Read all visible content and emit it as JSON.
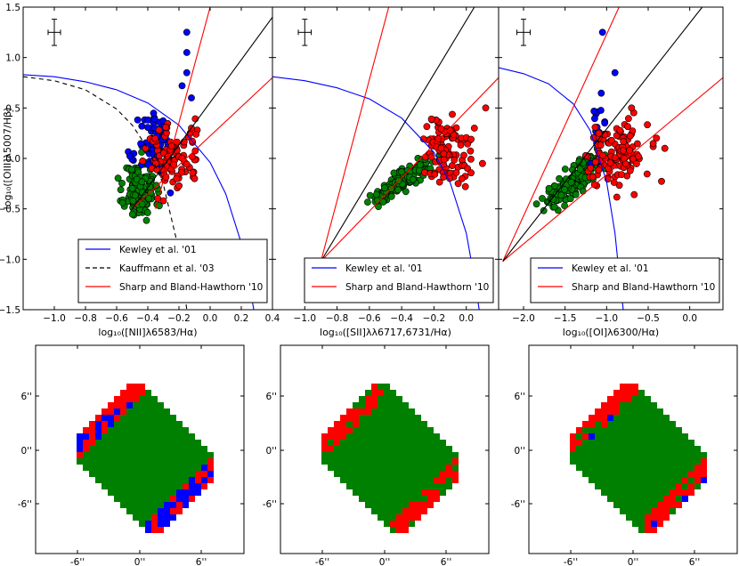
{
  "chart_data": [
    {
      "type": "scatter",
      "id": "bpt-nii",
      "xlabel": "log₁₀([NII]λ6583/Hα)",
      "ylabel": "log₁₀([OIII]λ5007/Hβ)",
      "xlim": [
        -1.2,
        0.4
      ],
      "ylim": [
        -1.5,
        1.5
      ],
      "xticks": [
        -1.0,
        -0.8,
        -0.6,
        -0.4,
        -0.2,
        0.0,
        0.2,
        0.4
      ],
      "xtick_labels": [
        "−1.0",
        "−0.8",
        "−0.6",
        "−0.4",
        "−0.2",
        "0.0",
        "0.2",
        "0.4"
      ],
      "yticks": [
        -1.5,
        -1.0,
        -0.5,
        0.0,
        0.5,
        1.0,
        1.5
      ],
      "ytick_labels": [
        "−1.5",
        "−1.0",
        "−0.5",
        "0.0",
        "0.5",
        "1.0",
        "1.5"
      ],
      "legend": {
        "position": "lower-center",
        "entries": [
          {
            "label": "Kewley et al. '01",
            "color": "#0000ff",
            "style": "solid"
          },
          {
            "label": "Kauffmann et al. '03",
            "color": "#000000",
            "style": "dashed"
          },
          {
            "label": "Sharp and Bland-Hawthorn '10",
            "color": "#ff0000",
            "style": "solid"
          }
        ]
      },
      "lines": [
        {
          "name": "kewley",
          "color": "#0000ff",
          "x": [
            -1.2,
            -1.0,
            -0.8,
            -0.6,
            -0.4,
            -0.2,
            0.0,
            0.1,
            0.2,
            0.25,
            0.28
          ],
          "y": [
            0.83,
            0.81,
            0.76,
            0.68,
            0.55,
            0.33,
            -0.04,
            -0.35,
            -0.84,
            -1.22,
            -1.5
          ]
        },
        {
          "name": "kauffmann",
          "color": "#000000",
          "dashed": true,
          "x": [
            -1.2,
            -1.0,
            -0.8,
            -0.6,
            -0.5,
            -0.4,
            -0.3,
            -0.2,
            -0.15
          ],
          "y": [
            0.81,
            0.77,
            0.68,
            0.49,
            0.33,
            0.1,
            -0.26,
            -0.91,
            -1.5
          ]
        },
        {
          "name": "sbh-upper",
          "color": "#ff0000",
          "x": [
            -0.35,
            0.0
          ],
          "y": [
            -0.5,
            1.5
          ]
        },
        {
          "name": "sbh-lower",
          "color": "#ff0000",
          "x": [
            -0.5,
            0.4
          ],
          "y": [
            -0.5,
            0.8
          ]
        },
        {
          "name": "divider",
          "color": "#000000",
          "x": [
            -0.5,
            0.4
          ],
          "y": [
            -0.5,
            1.4
          ]
        }
      ],
      "errorbar": {
        "x": -1.0,
        "y": 1.25,
        "xerr": 0.04,
        "yerr": 0.13
      },
      "series": [
        {
          "name": "green",
          "color": "#008000",
          "cx": -0.45,
          "cy": -0.32,
          "sx": 0.05,
          "sy": 0.14,
          "n": 150,
          "seed": 11
        },
        {
          "name": "blue",
          "color": "#0000ff",
          "cx": -0.34,
          "cy": 0.12,
          "sx": 0.06,
          "sy": 0.15,
          "n": 80,
          "seed": 21,
          "extra": [
            [
              -0.15,
              1.25
            ],
            [
              -0.15,
              1.05
            ],
            [
              -0.12,
              0.6
            ],
            [
              -0.15,
              0.85
            ],
            [
              -0.18,
              0.72
            ]
          ]
        },
        {
          "name": "red",
          "color": "#ff0000",
          "cx": -0.24,
          "cy": 0.0,
          "sx": 0.09,
          "sy": 0.16,
          "n": 90,
          "seed": 31,
          "extra": [
            [
              -0.12,
              0.3
            ],
            [
              -0.3,
              -0.42
            ],
            [
              -0.1,
              -0.2
            ]
          ]
        }
      ]
    },
    {
      "type": "scatter",
      "id": "bpt-sii",
      "xlabel": "log₁₀([SII]λλ6717,6731/Hα)",
      "ylabel": "",
      "xlim": [
        -1.2,
        0.2
      ],
      "ylim": [
        -1.5,
        1.5
      ],
      "xticks": [
        -1.0,
        -0.8,
        -0.6,
        -0.4,
        -0.2,
        0.0
      ],
      "xtick_labels": [
        "−1.0",
        "−0.8",
        "−0.6",
        "−0.4",
        "−0.2",
        "0.0"
      ],
      "legend": {
        "position": "lower-right",
        "entries": [
          {
            "label": "Kewley et al. '01",
            "color": "#0000ff",
            "style": "solid"
          },
          {
            "label": "Sharp and Bland-Hawthorn '10",
            "color": "#ff0000",
            "style": "solid"
          }
        ]
      },
      "lines": [
        {
          "name": "kewley",
          "color": "#0000ff",
          "x": [
            -1.2,
            -1.0,
            -0.8,
            -0.6,
            -0.4,
            -0.2,
            -0.1,
            0.0,
            0.05,
            0.08
          ],
          "y": [
            0.81,
            0.77,
            0.7,
            0.59,
            0.4,
            0.06,
            -0.24,
            -0.74,
            -1.19,
            -1.5
          ]
        },
        {
          "name": "sbh-upper",
          "color": "#ff0000",
          "x": [
            -0.9,
            -0.48
          ],
          "y": [
            -1.02,
            1.5
          ]
        },
        {
          "name": "sbh-lower",
          "color": "#ff0000",
          "x": [
            -0.9,
            0.2
          ],
          "y": [
            -1.02,
            0.8
          ]
        },
        {
          "name": "divider",
          "color": "#000000",
          "x": [
            -0.9,
            0.05
          ],
          "y": [
            -1.02,
            1.5
          ]
        }
      ],
      "errorbar": {
        "x": -1.0,
        "y": 1.25,
        "xerr": 0.04,
        "yerr": 0.13
      },
      "series": [
        {
          "name": "green",
          "color": "#008000",
          "cx": -0.4,
          "cy": -0.22,
          "sx": 0.09,
          "sy": 0.11,
          "n": 190,
          "seed": 41,
          "corr": 0.9
        },
        {
          "name": "red",
          "color": "#ff0000",
          "cx": -0.13,
          "cy": 0.07,
          "sx": 0.08,
          "sy": 0.17,
          "n": 110,
          "seed": 51,
          "extra": [
            [
              0.12,
              0.5
            ],
            [
              0.05,
              0.3
            ],
            [
              0.1,
              -0.05
            ],
            [
              -0.05,
              -0.25
            ]
          ]
        }
      ]
    },
    {
      "type": "scatter",
      "id": "bpt-oi",
      "xlabel": "log₁₀([OI]λ6300/Hα)",
      "ylabel": "",
      "xlim": [
        -2.3,
        0.4
      ],
      "ylim": [
        -1.5,
        1.5
      ],
      "xticks": [
        -2.0,
        -1.5,
        -1.0,
        -0.5,
        0.0
      ],
      "xtick_labels": [
        "−2.0",
        "−1.5",
        "−1.0",
        "−0.5",
        "0.0"
      ],
      "legend": {
        "position": "lower-right",
        "entries": [
          {
            "label": "Kewley et al. '01",
            "color": "#0000ff",
            "style": "solid"
          },
          {
            "label": "Sharp and Bland-Hawthorn '10",
            "color": "#ff0000",
            "style": "solid"
          }
        ]
      },
      "lines": [
        {
          "name": "kewley",
          "color": "#0000ff",
          "x": [
            -2.3,
            -2.0,
            -1.7,
            -1.4,
            -1.2,
            -1.0,
            -0.9,
            -0.85,
            -0.8
          ],
          "y": [
            0.9,
            0.84,
            0.74,
            0.54,
            0.28,
            -0.23,
            -0.74,
            -1.14,
            -1.5
          ]
        },
        {
          "name": "sbh-upper",
          "color": "#ff0000",
          "x": [
            -2.25,
            -0.85
          ],
          "y": [
            -1.02,
            1.5
          ]
        },
        {
          "name": "sbh-lower",
          "color": "#ff0000",
          "x": [
            -2.25,
            0.4
          ],
          "y": [
            -1.02,
            0.8
          ]
        },
        {
          "name": "divider",
          "color": "#000000",
          "x": [
            -2.25,
            0.15
          ],
          "y": [
            -1.02,
            1.5
          ]
        }
      ],
      "errorbar": {
        "x": -2.0,
        "y": 1.25,
        "xerr": 0.08,
        "yerr": 0.13
      },
      "series": [
        {
          "name": "green",
          "color": "#008000",
          "cx": -1.4,
          "cy": -0.22,
          "sx": 0.17,
          "sy": 0.14,
          "n": 190,
          "seed": 61,
          "corr": 0.85
        },
        {
          "name": "blue",
          "color": "#0000ff",
          "cx": -1.08,
          "cy": 0.28,
          "sx": 0.05,
          "sy": 0.16,
          "n": 20,
          "seed": 71,
          "extra": [
            [
              -1.05,
              1.25
            ],
            [
              -0.9,
              0.85
            ]
          ]
        },
        {
          "name": "red",
          "color": "#ff0000",
          "cx": -0.88,
          "cy": 0.05,
          "sx": 0.17,
          "sy": 0.17,
          "n": 120,
          "seed": 81,
          "extra": [
            [
              -0.3,
              0.1
            ],
            [
              -0.4,
              0.2
            ],
            [
              -0.7,
              0.5
            ]
          ]
        }
      ]
    }
  ],
  "maps": {
    "x_tick_labels": [
      "-6''",
      "0''",
      "6''"
    ],
    "y_tick_labels": [
      "6''",
      "0''",
      "-6''"
    ],
    "panels": [
      {
        "id": "map-nii",
        "blue_patches": true,
        "red_rim": "full"
      },
      {
        "id": "map-sii",
        "blue_patches": false,
        "red_rim": "partial"
      },
      {
        "id": "map-oi",
        "blue_patches": "few",
        "red_rim": "partial"
      }
    ]
  },
  "colors": {
    "green": "#008000",
    "blue": "#0000ff",
    "red": "#ff0000",
    "axis": "#000000"
  }
}
